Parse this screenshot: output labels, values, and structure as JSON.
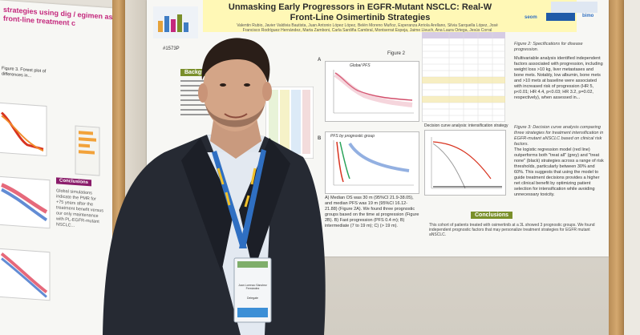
{
  "main_poster": {
    "title_line1": "Unmasking Early Progressors in EGFR-Mutant NSCLC: Real-W",
    "title_line2": "Front-Line Osimertinib Strategies",
    "authors": "Valentin Rubio, Javier Valdivia Bautista, Juan Antonio López López, Belén Moreno Muñoz, Esperanza Arriola Arellano, Silvia Sarquella López, José Francisco Rodríguez Hernández, Marta Zamboni, Carla Sardiña Cambral, Montserrat Espeja, Jaime Lleuch, Ana Laura Ortega, Jesús Corral",
    "logo_secom": "seom",
    "logo_bimo": "bimo",
    "poster_id": "#1573P",
    "section_background": "Background",
    "section_conclusions": "Conclusions",
    "figure2_label": "Figure 2",
    "panel_a": "A",
    "panel_b": "B",
    "panel_a_title": "Global PFS",
    "panel_b_title": "PFS by prognostic group",
    "figure2_caption": "Figure 2: Specifications for disease progression.",
    "multivariable_text": "Multivariable analysis identified independent factors associated with progression, including weight loss >10 kg, liver metastases and bone mets. Notably, low albumin, bone mets and >10 mets at baseline were associated with increased risk of progression (HR 5, p<0.01; HR 4.4, p<0.03; HR 3.2, p=0.02, respectively), when assessed in...",
    "decision_curve_title": "Decision curve analysis: intensification strategy",
    "figure3_caption": "Figure 3: Decision curve analysis comparing three strategies for treatment intensification in EGFR-mutant aNSCLC based on clinical risk factors.",
    "logistic_text": "The logistic regression model (red line) outperforms both \"treat all\" (grey) and \"treat none\" (black) strategies across a range of risk thresholds, particularly between 30% and 60%. This suggests that using the model to guide treatment decisions provides a higher net clinical benefit by optimizing patient selection for intensification while avoiding unnecessary toxicity.",
    "median_text": "A) Median OS was 30 m (95%CI 21.9-38.05), and median PFS was 19 m (95%CI 16.12-21.88) (Figure 2A). We found three prognostic groups based on the time at progression (Figure 2B). B) Fast progression (PFS 0.4 m); B) intermediate (7 to 19 m); C) (> 19 m).",
    "conclusions_text": "This cohort of patients treated with osimertinib at a 3L showed 3 prognostic groups. We found independent prognostic factors that may personalize treatment strategies for EGFR mutant aNSCLC."
  },
  "left_poster": {
    "title": "strategies using dig / egimen as front-line treatment c",
    "section_conclusions": "Conclusions",
    "figure_label": "Figure 3. Forest plot of differences in...",
    "text_snippet": "Global simulations indicate the PMR for +75 years after the treatment benefit versus our only maintenance with PL-EGFR-mutant NSCLC..."
  },
  "badge": {
    "name": "Juan Lorenzo Sánchez Fernández",
    "role": "Delegate"
  },
  "colors": {
    "poster_title_bg": "#fff8b6",
    "section_green": "#7a8f2a",
    "left_accent": "#c4297d",
    "jacket": "#262a33",
    "lanyard_blue": "#2f6fc2"
  }
}
